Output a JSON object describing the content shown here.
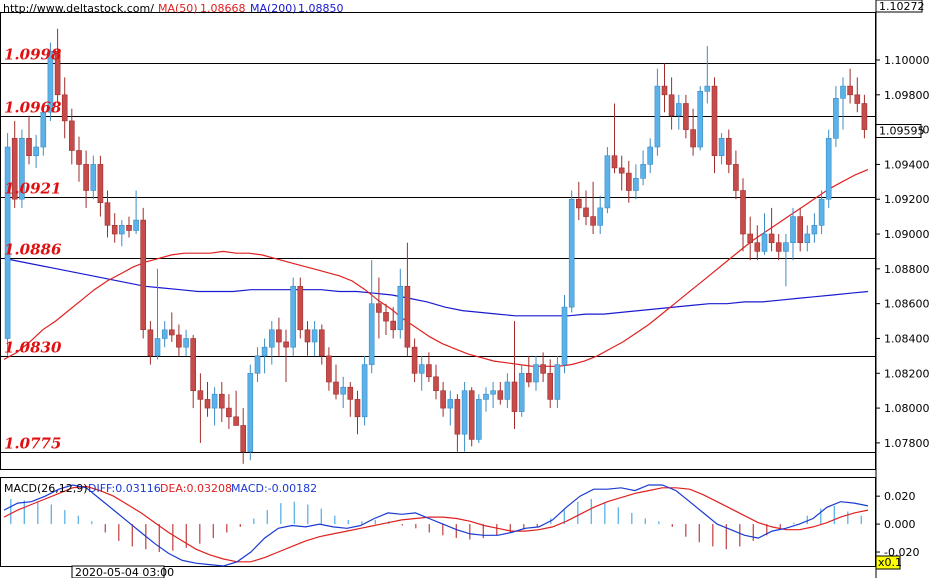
{
  "header": {
    "url": "http://www.deltastock.com/",
    "ma50_label": "MA(50)",
    "ma50_value": "1.08668",
    "ma200_label": "MA(200)",
    "ma200_value": "1.08850",
    "top_price": "1.10272"
  },
  "colors": {
    "bull": "#5bb2e8",
    "bull_border": "#3d8cc4",
    "bear": "#c64b4b",
    "bear_border": "#a02c2c",
    "ma50": "#e02020",
    "ma200": "#1a1ad0",
    "level_text": "#e01010",
    "macd_diff": "#1a3ad0",
    "macd_dea": "#e02020",
    "current_price_box": "#ffffff"
  },
  "price_axis": {
    "ticks": [
      "1.10000",
      "1.09800",
      "1.09600",
      "1.09400",
      "1.09200",
      "1.09000",
      "1.08800",
      "1.08600",
      "1.08400",
      "1.08200",
      "1.08000",
      "1.07800"
    ],
    "current_price": "1.09595"
  },
  "levels": [
    "1.0998",
    "1.0968",
    "1.0921",
    "1.0886",
    "1.0830",
    "1.0775"
  ],
  "macd": {
    "title": "MACD(26,12,9)",
    "diff_label": "DIFF:0.03116",
    "dea_label": "DEA:0.03208",
    "macd_label": "MACD:-0.00182",
    "ticks": [
      "0.020",
      "0.000",
      "-0.020"
    ]
  },
  "footer": {
    "date_label": "2020-05-04 03:00",
    "zoom": "x0.1"
  },
  "chart_data": {
    "type": "candlestick",
    "symbol_site": "http://www.deltastock.com/",
    "ylim": [
      1.0765,
      1.1027
    ],
    "levels": [
      1.0998,
      1.0968,
      1.0921,
      1.0886,
      1.083,
      1.0775
    ],
    "candles": [
      [
        1.084,
        1.0958,
        1.083,
        1.095
      ],
      [
        1.0955,
        1.0965,
        1.0915,
        1.092
      ],
      [
        1.092,
        1.096,
        1.0915,
        1.0955
      ],
      [
        1.0955,
        1.0968,
        1.094,
        1.0945
      ],
      [
        1.0945,
        1.0957,
        1.0938,
        1.095
      ],
      [
        1.095,
        1.0975,
        1.0945,
        1.097
      ],
      [
        1.097,
        1.101,
        1.0965,
        1.1005
      ],
      [
        1.1005,
        1.1018,
        1.0975,
        1.098
      ],
      [
        1.098,
        1.099,
        1.0955,
        1.0965
      ],
      [
        1.0965,
        1.0972,
        1.094,
        1.0948
      ],
      [
        1.0948,
        1.0956,
        1.093,
        1.094
      ],
      [
        1.094,
        1.0948,
        1.0915,
        1.0925
      ],
      [
        1.0925,
        1.0945,
        1.092,
        1.094
      ],
      [
        1.094,
        1.0945,
        1.091,
        1.0918
      ],
      [
        1.0918,
        1.0925,
        1.0898,
        1.0905
      ],
      [
        1.0905,
        1.0912,
        1.0895,
        1.09
      ],
      [
        1.09,
        1.0908,
        1.0893,
        1.0905
      ],
      [
        1.0905,
        1.091,
        1.0898,
        1.0902
      ],
      [
        1.0902,
        1.0925,
        1.09,
        1.0908
      ],
      [
        1.0908,
        1.0915,
        1.084,
        1.0845
      ],
      [
        1.0845,
        1.085,
        1.0825,
        1.083
      ],
      [
        1.083,
        1.088,
        1.0828,
        1.084
      ],
      [
        1.084,
        1.085,
        1.0835,
        1.0845
      ],
      [
        1.0845,
        1.0855,
        1.0838,
        1.0842
      ],
      [
        1.0842,
        1.0848,
        1.083,
        1.0835
      ],
      [
        1.0835,
        1.0845,
        1.083,
        1.084
      ],
      [
        1.084,
        1.0842,
        1.08,
        1.081
      ],
      [
        1.081,
        1.082,
        1.078,
        1.0805
      ],
      [
        1.0805,
        1.0815,
        1.0795,
        1.08
      ],
      [
        1.08,
        1.0812,
        1.079,
        1.0808
      ],
      [
        1.0808,
        1.0815,
        1.0792,
        1.08
      ],
      [
        1.08,
        1.0808,
        1.0788,
        1.0795
      ],
      [
        1.0795,
        1.081,
        1.079,
        1.079
      ],
      [
        1.079,
        1.08,
        1.0768,
        1.0775
      ],
      [
        1.0775,
        1.0825,
        1.077,
        1.082
      ],
      [
        1.082,
        1.0835,
        1.0815,
        1.083
      ],
      [
        1.083,
        1.084,
        1.082,
        1.0835
      ],
      [
        1.0835,
        1.085,
        1.0825,
        1.0845
      ],
      [
        1.0845,
        1.0852,
        1.083,
        1.0838
      ],
      [
        1.0838,
        1.0845,
        1.0815,
        1.0835
      ],
      [
        1.0835,
        1.0875,
        1.083,
        1.087
      ],
      [
        1.087,
        1.0875,
        1.084,
        1.0845
      ],
      [
        1.0845,
        1.085,
        1.083,
        1.0838
      ],
      [
        1.0838,
        1.085,
        1.083,
        1.0845
      ],
      [
        1.0845,
        1.0848,
        1.0825,
        1.083
      ],
      [
        1.083,
        1.0835,
        1.081,
        1.0815
      ],
      [
        1.0815,
        1.0825,
        1.0805,
        1.0808
      ],
      [
        1.0808,
        1.0818,
        1.08,
        1.0812
      ],
      [
        1.0812,
        1.0815,
        1.0795,
        1.0805
      ],
      [
        1.0805,
        1.081,
        1.0785,
        1.0795
      ],
      [
        1.0795,
        1.083,
        1.079,
        1.0825
      ],
      [
        1.0825,
        1.0885,
        1.082,
        1.086
      ],
      [
        1.086,
        1.0875,
        1.084,
        1.0855
      ],
      [
        1.0855,
        1.086,
        1.0842,
        1.085
      ],
      [
        1.085,
        1.0858,
        1.084,
        1.0845
      ],
      [
        1.0845,
        1.088,
        1.084,
        1.087
      ],
      [
        1.087,
        1.0895,
        1.083,
        1.0835
      ],
      [
        1.0835,
        1.084,
        1.0815,
        1.082
      ],
      [
        1.082,
        1.083,
        1.081,
        1.0825
      ],
      [
        1.0825,
        1.0832,
        1.0815,
        1.0818
      ],
      [
        1.0818,
        1.0825,
        1.0805,
        1.081
      ],
      [
        1.081,
        1.0815,
        1.0795,
        1.08
      ],
      [
        1.08,
        1.081,
        1.079,
        1.0805
      ],
      [
        1.0805,
        1.0808,
        1.0775,
        1.0785
      ],
      [
        1.0785,
        1.0815,
        1.0775,
        1.081
      ],
      [
        1.081,
        1.0812,
        1.0778,
        1.0782
      ],
      [
        1.0782,
        1.0808,
        1.078,
        1.0805
      ],
      [
        1.0805,
        1.0812,
        1.0798,
        1.0808
      ],
      [
        1.0808,
        1.0815,
        1.08,
        1.081
      ],
      [
        1.081,
        1.0815,
        1.0802,
        1.0805
      ],
      [
        1.0805,
        1.082,
        1.08,
        1.0815
      ],
      [
        1.0815,
        1.085,
        1.0788,
        1.0798
      ],
      [
        1.0798,
        1.0825,
        1.0795,
        1.082
      ],
      [
        1.082,
        1.083,
        1.0812,
        1.0815
      ],
      [
        1.0815,
        1.083,
        1.081,
        1.0825
      ],
      [
        1.0825,
        1.0832,
        1.0815,
        1.082
      ],
      [
        1.082,
        1.0828,
        1.08,
        1.0805
      ],
      [
        1.0805,
        1.083,
        1.08,
        1.0825
      ],
      [
        1.0825,
        1.0865,
        1.082,
        1.0858
      ],
      [
        1.0858,
        1.0925,
        1.0855,
        1.092
      ],
      [
        1.092,
        1.093,
        1.0908,
        1.0915
      ],
      [
        1.0915,
        1.0925,
        1.0905,
        1.091
      ],
      [
        1.091,
        1.093,
        1.09,
        1.0905
      ],
      [
        1.0905,
        1.0922,
        1.09,
        1.0915
      ],
      [
        1.0915,
        1.095,
        1.0912,
        1.0945
      ],
      [
        1.0945,
        1.0975,
        1.0935,
        1.0938
      ],
      [
        1.0938,
        1.0945,
        1.0925,
        1.0935
      ],
      [
        1.0935,
        1.0942,
        1.0918,
        1.0925
      ],
      [
        1.0925,
        1.094,
        1.092,
        1.0932
      ],
      [
        1.0932,
        1.0948,
        1.0928,
        1.094
      ],
      [
        1.094,
        1.0955,
        1.0935,
        1.095
      ],
      [
        1.095,
        1.0995,
        1.0945,
        1.0985
      ],
      [
        1.0985,
        1.0998,
        1.097,
        1.098
      ],
      [
        1.098,
        1.099,
        1.096,
        1.0968
      ],
      [
        1.0968,
        1.098,
        1.096,
        1.0975
      ],
      [
        1.0975,
        1.098,
        1.0955,
        1.096
      ],
      [
        1.096,
        1.0972,
        1.0945,
        1.095
      ],
      [
        1.095,
        1.0985,
        1.0948,
        1.0982
      ],
      [
        1.0982,
        1.1008,
        1.0975,
        1.0985
      ],
      [
        1.0985,
        1.099,
        1.0935,
        1.0945
      ],
      [
        1.0945,
        1.0958,
        1.094,
        1.0955
      ],
      [
        1.0955,
        1.096,
        1.0935,
        1.094
      ],
      [
        1.094,
        1.0948,
        1.092,
        1.0925
      ],
      [
        1.0925,
        1.0932,
        1.089,
        1.09
      ],
      [
        1.09,
        1.091,
        1.0885,
        1.0895
      ],
      [
        1.0895,
        1.0905,
        1.0885,
        1.089
      ],
      [
        1.089,
        1.0912,
        1.0888,
        1.09
      ],
      [
        1.09,
        1.0915,
        1.089,
        1.0895
      ],
      [
        1.0895,
        1.09,
        1.0885,
        1.089
      ],
      [
        1.089,
        1.09,
        1.087,
        1.0895
      ],
      [
        1.0895,
        1.0915,
        1.0885,
        1.091
      ],
      [
        1.091,
        1.0915,
        1.089,
        1.0895
      ],
      [
        1.0895,
        1.0905,
        1.089,
        1.09
      ],
      [
        1.09,
        1.0912,
        1.0895,
        1.0905
      ],
      [
        1.0905,
        1.0925,
        1.09,
        1.092
      ],
      [
        1.092,
        1.096,
        1.0915,
        1.0955
      ],
      [
        1.0955,
        1.0985,
        1.095,
        1.0978
      ],
      [
        1.0978,
        1.099,
        1.096,
        1.0985
      ],
      [
        1.0985,
        1.0995,
        1.0975,
        1.098
      ],
      [
        1.098,
        1.099,
        1.097,
        1.0975
      ],
      [
        1.0975,
        1.098,
        1.0955,
        1.096
      ]
    ],
    "ma50": [
      1.0828,
      1.0832,
      1.0838,
      1.0845,
      1.085,
      1.0856,
      1.0862,
      1.0868,
      1.0873,
      1.0877,
      1.0881,
      1.0884,
      1.0886,
      1.0888,
      1.0889,
      1.0889,
      1.0889,
      1.089,
      1.0889,
      1.0889,
      1.0888,
      1.0886,
      1.0884,
      1.0882,
      1.088,
      1.0878,
      1.0876,
      1.0873,
      1.0868,
      1.0862,
      1.0857,
      1.0851,
      1.0846,
      1.0841,
      1.0837,
      1.0834,
      1.0831,
      1.0829,
      1.0827,
      1.0826,
      1.0825,
      1.0824,
      1.0824,
      1.0824,
      1.0825,
      1.0827,
      1.083,
      1.0834,
      1.0838,
      1.0843,
      1.0848,
      1.0854,
      1.086,
      1.0866,
      1.0872,
      1.0878,
      1.0884,
      1.089,
      1.0896,
      1.0901,
      1.0906,
      1.0911,
      1.0916,
      1.0921,
      1.0926,
      1.093,
      1.0934,
      1.0937
    ],
    "ma200": [
      1.0886,
      1.0884,
      1.0882,
      1.088,
      1.0878,
      1.0876,
      1.0874,
      1.0872,
      1.087,
      1.0869,
      1.0868,
      1.0867,
      1.0867,
      1.0867,
      1.0868,
      1.0868,
      1.0868,
      1.0868,
      1.0868,
      1.0867,
      1.0867,
      1.0866,
      1.0865,
      1.0863,
      1.0861,
      1.0858,
      1.0856,
      1.0855,
      1.0854,
      1.0853,
      1.0853,
      1.0853,
      1.0853,
      1.0854,
      1.0854,
      1.0855,
      1.0856,
      1.0857,
      1.0858,
      1.0859,
      1.086,
      1.086,
      1.0861,
      1.0861,
      1.0862,
      1.0863,
      1.0864,
      1.0865,
      1.0866,
      1.0867
    ],
    "macd_ylim": [
      -0.03,
      0.033
    ],
    "macd_diff": [
      0.01,
      0.015,
      0.016,
      0.02,
      0.025,
      0.028,
      0.026,
      0.018,
      0.01,
      0.002,
      -0.006,
      -0.014,
      -0.021,
      -0.026,
      -0.028,
      -0.029,
      -0.03,
      -0.027,
      -0.02,
      -0.01,
      -0.003,
      -0.001,
      -0.002,
      0.0,
      -0.002,
      -0.003,
      -0.001,
      0.004,
      0.008,
      0.007,
      0.008,
      0.004,
      0.0,
      -0.004,
      -0.007,
      -0.008,
      -0.008,
      -0.006,
      -0.003,
      -0.002,
      0.003,
      0.012,
      0.02,
      0.025,
      0.025,
      0.026,
      0.024,
      0.028,
      0.028,
      0.024,
      0.016,
      0.008,
      0.0,
      -0.004,
      -0.008,
      -0.01,
      -0.005,
      -0.003,
      0.0,
      0.004,
      0.012,
      0.016,
      0.015,
      0.013
    ],
    "macd_dea": [
      0.005,
      0.01,
      0.014,
      0.018,
      0.022,
      0.026,
      0.027,
      0.024,
      0.02,
      0.014,
      0.008,
      0.001,
      -0.006,
      -0.012,
      -0.018,
      -0.022,
      -0.025,
      -0.027,
      -0.027,
      -0.024,
      -0.02,
      -0.016,
      -0.012,
      -0.009,
      -0.007,
      -0.005,
      -0.003,
      -0.001,
      0.001,
      0.003,
      0.004,
      0.005,
      0.005,
      0.004,
      0.002,
      -0.001,
      -0.003,
      -0.005,
      -0.005,
      -0.004,
      -0.002,
      0.002,
      0.007,
      0.012,
      0.016,
      0.019,
      0.022,
      0.024,
      0.026,
      0.026,
      0.025,
      0.021,
      0.016,
      0.011,
      0.006,
      0.001,
      -0.002,
      -0.004,
      -0.004,
      -0.002,
      0.001,
      0.005,
      0.008,
      0.01
    ],
    "macd_hist": [
      0.018,
      0.017,
      0.016,
      0.014,
      0.01,
      0.006,
      0.002,
      -0.006,
      -0.012,
      -0.016,
      -0.018,
      -0.02,
      -0.019,
      -0.017,
      -0.014,
      -0.01,
      -0.006,
      -0.002,
      0.004,
      0.01,
      0.015,
      0.016,
      0.014,
      0.011,
      0.006,
      0.003,
      0.002,
      0.003,
      0.002,
      -0.001,
      -0.003,
      -0.006,
      -0.008,
      -0.01,
      -0.011,
      -0.01,
      -0.008,
      -0.006,
      -0.004,
      -0.002,
      0.004,
      0.01,
      0.016,
      0.018,
      0.015,
      0.012,
      0.008,
      0.004,
      0.002,
      -0.002,
      -0.009,
      -0.013,
      -0.016,
      -0.018,
      -0.016,
      -0.012,
      -0.008,
      -0.004,
      0.001,
      0.006,
      0.011,
      0.013,
      0.009,
      0.006
    ]
  }
}
